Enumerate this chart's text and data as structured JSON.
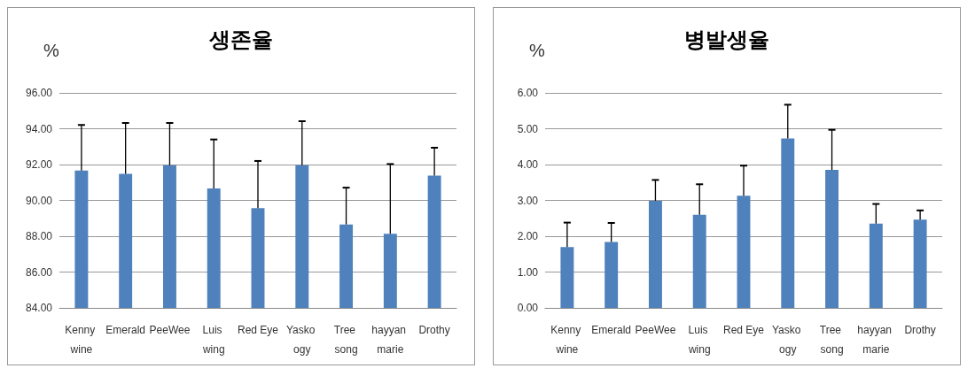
{
  "chart_data": [
    {
      "type": "bar",
      "title": "생존율",
      "ylabel": "%",
      "categories": [
        "Kenny wine",
        "Emerald",
        "PeeWee",
        "Luis wing",
        "Red Eye",
        "Yasko ogy",
        "Tree song",
        "hayyan marie",
        "Drothy"
      ],
      "series": [
        {
          "color": "#4f81bd",
          "values": [
            91.67,
            91.48,
            91.96,
            90.67,
            89.57,
            91.96,
            88.66,
            88.14,
            91.38
          ],
          "errors": [
            [
              91.67,
              94.21
            ],
            [
              91.48,
              94.32
            ],
            [
              91.96,
              94.32
            ],
            [
              90.67,
              93.4
            ],
            [
              89.57,
              92.2
            ],
            [
              91.96,
              94.42
            ],
            [
              88.66,
              90.71
            ],
            [
              88.14,
              92.03
            ],
            [
              91.38,
              92.94
            ]
          ]
        }
      ],
      "ylim": [
        84,
        96
      ],
      "yticks": [
        {
          "value": 84,
          "label": "84.00"
        },
        {
          "value": 86,
          "label": "86.00"
        },
        {
          "value": 88,
          "label": "88.00"
        },
        {
          "value": 90,
          "label": "90.00"
        },
        {
          "value": 92,
          "label": "92.00"
        },
        {
          "value": 94,
          "label": "94.00"
        },
        {
          "value": 96,
          "label": "96.00"
        }
      ],
      "grid": "y"
    },
    {
      "type": "bar",
      "title": "병발생율",
      "ylabel": "%",
      "categories": [
        "Kenny wine",
        "Emerald",
        "PeeWee",
        "Luis wing",
        "Red Eye",
        "Yasko ogy",
        "Tree song",
        "hayyan marie",
        "Drothy"
      ],
      "series": [
        {
          "color": "#4f81bd",
          "values": [
            1.7,
            1.84,
            2.99,
            2.6,
            3.13,
            4.73,
            3.85,
            2.35,
            2.46
          ],
          "errors": [
            [
              1.7,
              2.38
            ],
            [
              1.84,
              2.37
            ],
            [
              2.99,
              3.57
            ],
            [
              2.6,
              3.45
            ],
            [
              3.13,
              3.97
            ],
            [
              4.73,
              5.67
            ],
            [
              3.85,
              4.97
            ],
            [
              2.35,
              2.9
            ],
            [
              2.46,
              2.72
            ]
          ]
        }
      ],
      "ylim": [
        0,
        6
      ],
      "yticks": [
        {
          "value": 0,
          "label": "0.00"
        },
        {
          "value": 1,
          "label": "1.00"
        },
        {
          "value": 2,
          "label": "2.00"
        },
        {
          "value": 3,
          "label": "3.00"
        },
        {
          "value": 4,
          "label": "4.00"
        },
        {
          "value": 5,
          "label": "5.00"
        },
        {
          "value": 6,
          "label": "6.00"
        }
      ],
      "grid": "y"
    }
  ]
}
